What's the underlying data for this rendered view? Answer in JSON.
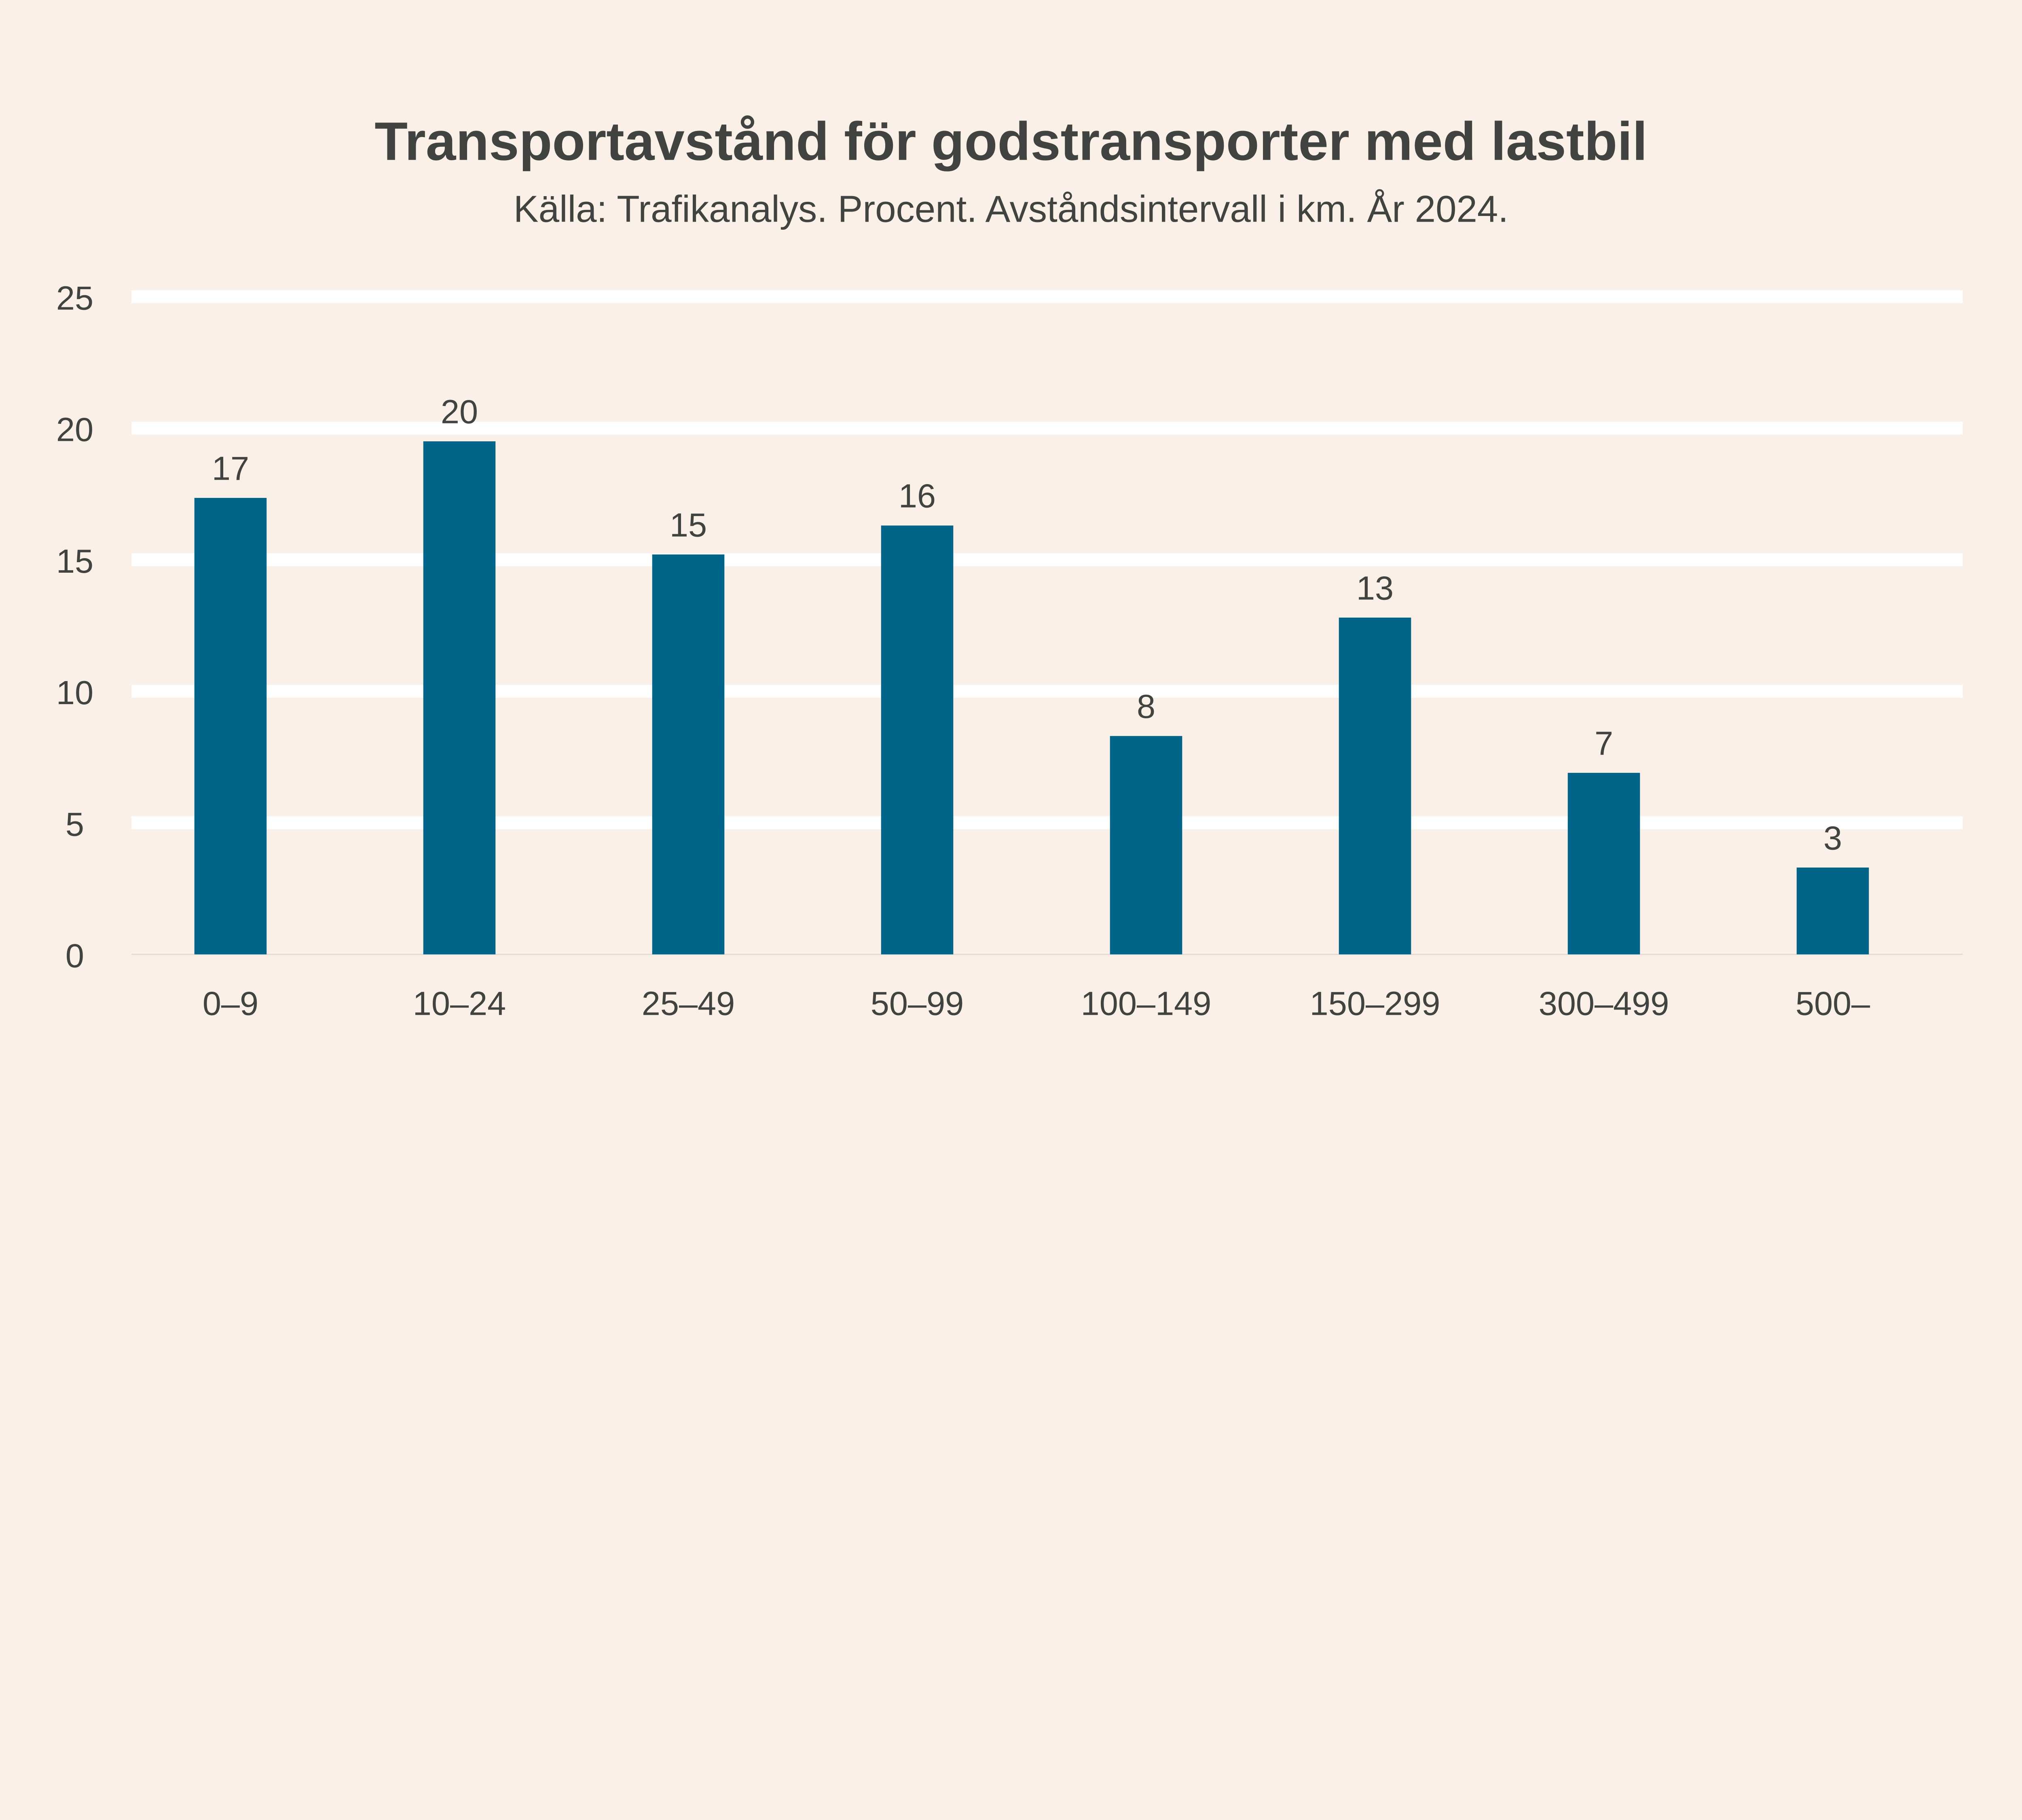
{
  "chart_data": {
    "type": "bar",
    "title": "Transportavstånd för godstransporter med lastbil",
    "subtitle": "Källa: Trafikanalys. Procent. Avståndsintervall i km. År 2024.",
    "xlabel": "",
    "ylabel": "",
    "ylim": [
      0,
      25
    ],
    "yticks": [
      "0",
      "5",
      "10",
      "15",
      "20",
      "25"
    ],
    "grid": true,
    "categories": [
      "0–9",
      "10–24",
      "25–49",
      "50–99",
      "100–149",
      "150–299",
      "300–499",
      "500–"
    ],
    "values": [
      17.35,
      19.5,
      15.2,
      16.3,
      8.3,
      12.8,
      6.9,
      3.3
    ],
    "data_labels": [
      "17",
      "20",
      "15",
      "16",
      "8",
      "13",
      "7",
      "3"
    ],
    "colors": {
      "background": "#FAF0E8",
      "bar": "#006589",
      "gridline": "#FFFFFF",
      "text": "#404340"
    }
  }
}
